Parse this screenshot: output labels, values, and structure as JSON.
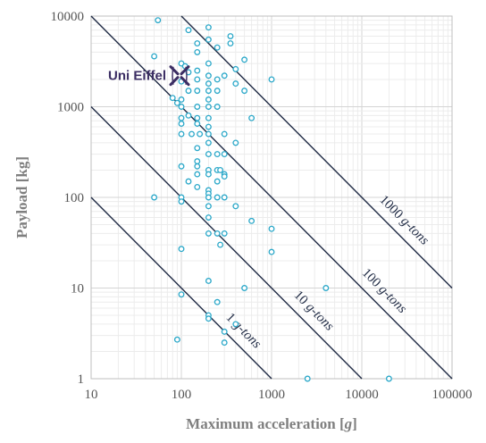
{
  "chart_data": {
    "type": "scatter",
    "title": "",
    "xlabel": "Maximum acceleration [",
    "xlabel_var": "g",
    "xlabel_end": "]",
    "ylabel": "Payload [kg]",
    "xscale": "log",
    "yscale": "log",
    "xlim": [
      10,
      100000
    ],
    "ylim": [
      1,
      10000
    ],
    "grid": true,
    "x_ticks": [
      "10",
      "100",
      "1000",
      "10000",
      "100000"
    ],
    "y_ticks": [
      "1",
      "10",
      "100",
      "1000",
      "10000"
    ],
    "marker_color": "#2ba8c9",
    "line_color": "#1f2a44",
    "points": [
      {
        "x": 55,
        "y": 9000
      },
      {
        "x": 200,
        "y": 7500
      },
      {
        "x": 120,
        "y": 7000
      },
      {
        "x": 350,
        "y": 6000
      },
      {
        "x": 200,
        "y": 5500
      },
      {
        "x": 350,
        "y": 5000
      },
      {
        "x": 150,
        "y": 5000
      },
      {
        "x": 250,
        "y": 4500
      },
      {
        "x": 150,
        "y": 4000
      },
      {
        "x": 50,
        "y": 3600
      },
      {
        "x": 500,
        "y": 3300
      },
      {
        "x": 100,
        "y": 3000
      },
      {
        "x": 200,
        "y": 3000
      },
      {
        "x": 110,
        "y": 2800
      },
      {
        "x": 400,
        "y": 2600
      },
      {
        "x": 150,
        "y": 2500
      },
      {
        "x": 120,
        "y": 2400
      },
      {
        "x": 300,
        "y": 2200
      },
      {
        "x": 200,
        "y": 2200
      },
      {
        "x": 250,
        "y": 2000
      },
      {
        "x": 1000,
        "y": 2000
      },
      {
        "x": 150,
        "y": 2000
      },
      {
        "x": 100,
        "y": 1900
      },
      {
        "x": 200,
        "y": 1800
      },
      {
        "x": 400,
        "y": 1800
      },
      {
        "x": 150,
        "y": 1500
      },
      {
        "x": 120,
        "y": 1500
      },
      {
        "x": 200,
        "y": 1500
      },
      {
        "x": 250,
        "y": 1500
      },
      {
        "x": 500,
        "y": 1500
      },
      {
        "x": 80,
        "y": 1250
      },
      {
        "x": 100,
        "y": 1200
      },
      {
        "x": 200,
        "y": 1200
      },
      {
        "x": 90,
        "y": 1100
      },
      {
        "x": 100,
        "y": 1000
      },
      {
        "x": 150,
        "y": 1000
      },
      {
        "x": 200,
        "y": 1000
      },
      {
        "x": 250,
        "y": 1000
      },
      {
        "x": 120,
        "y": 800
      },
      {
        "x": 100,
        "y": 750
      },
      {
        "x": 150,
        "y": 750
      },
      {
        "x": 200,
        "y": 750
      },
      {
        "x": 600,
        "y": 750
      },
      {
        "x": 100,
        "y": 650
      },
      {
        "x": 150,
        "y": 650
      },
      {
        "x": 200,
        "y": 600
      },
      {
        "x": 100,
        "y": 500
      },
      {
        "x": 130,
        "y": 500
      },
      {
        "x": 160,
        "y": 500
      },
      {
        "x": 200,
        "y": 500
      },
      {
        "x": 300,
        "y": 500
      },
      {
        "x": 200,
        "y": 400
      },
      {
        "x": 400,
        "y": 400
      },
      {
        "x": 150,
        "y": 350
      },
      {
        "x": 200,
        "y": 300
      },
      {
        "x": 250,
        "y": 300
      },
      {
        "x": 300,
        "y": 300
      },
      {
        "x": 150,
        "y": 250
      },
      {
        "x": 150,
        "y": 220
      },
      {
        "x": 100,
        "y": 220
      },
      {
        "x": 200,
        "y": 200
      },
      {
        "x": 250,
        "y": 200
      },
      {
        "x": 270,
        "y": 200
      },
      {
        "x": 150,
        "y": 180
      },
      {
        "x": 200,
        "y": 180
      },
      {
        "x": 300,
        "y": 180
      },
      {
        "x": 300,
        "y": 170
      },
      {
        "x": 250,
        "y": 150
      },
      {
        "x": 120,
        "y": 150
      },
      {
        "x": 150,
        "y": 130
      },
      {
        "x": 200,
        "y": 120
      },
      {
        "x": 200,
        "y": 110
      },
      {
        "x": 50,
        "y": 100
      },
      {
        "x": 100,
        "y": 100
      },
      {
        "x": 200,
        "y": 100
      },
      {
        "x": 250,
        "y": 100
      },
      {
        "x": 300,
        "y": 100
      },
      {
        "x": 100,
        "y": 90
      },
      {
        "x": 200,
        "y": 80
      },
      {
        "x": 400,
        "y": 80
      },
      {
        "x": 200,
        "y": 60
      },
      {
        "x": 600,
        "y": 55
      },
      {
        "x": 1000,
        "y": 45
      },
      {
        "x": 200,
        "y": 40
      },
      {
        "x": 250,
        "y": 40
      },
      {
        "x": 300,
        "y": 40
      },
      {
        "x": 270,
        "y": 30
      },
      {
        "x": 100,
        "y": 27
      },
      {
        "x": 1000,
        "y": 25
      },
      {
        "x": 200,
        "y": 12
      },
      {
        "x": 500,
        "y": 10
      },
      {
        "x": 4000,
        "y": 10
      },
      {
        "x": 100,
        "y": 8.5
      },
      {
        "x": 250,
        "y": 7
      },
      {
        "x": 200,
        "y": 5
      },
      {
        "x": 200,
        "y": 4.6
      },
      {
        "x": 400,
        "y": 4
      },
      {
        "x": 300,
        "y": 3.3
      },
      {
        "x": 90,
        "y": 2.7
      },
      {
        "x": 300,
        "y": 2.5
      },
      {
        "x": 2500,
        "y": 1
      },
      {
        "x": 20000,
        "y": 1
      }
    ],
    "reference_lines": [
      {
        "label_main": "1 ",
        "label_unit": "g-tons",
        "product": 1000
      },
      {
        "label_main": "10 ",
        "label_unit": "g-tons",
        "product": 10000
      },
      {
        "label_main": "100 ",
        "label_unit": "g-tons",
        "product": 100000
      },
      {
        "label_main": "1000 ",
        "label_unit": "g-tons",
        "product": 1000000
      }
    ],
    "annotation": {
      "label": "Uni Eiffel",
      "x": 100,
      "y": 2200,
      "icon": "uni-eiffel-logo-icon",
      "color": "#3b2d63"
    }
  }
}
